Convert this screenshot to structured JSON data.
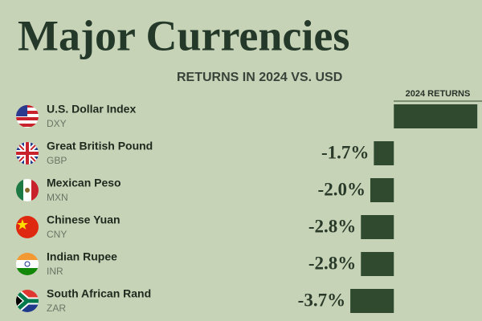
{
  "chart_data": {
    "type": "bar",
    "orientation": "horizontal",
    "title": "Major Currencies",
    "subtitle": "RETURNS IN 2024 VS. USD",
    "column_header": "2024 RETURNS",
    "categories": [
      "U.S. Dollar Index",
      "Great British Pound",
      "Mexican Peso",
      "Chinese Yuan",
      "Indian Rupee",
      "South African Rand"
    ],
    "codes": [
      "DXY",
      "GBP",
      "MXN",
      "CNY",
      "INR",
      "ZAR"
    ],
    "values": [
      7.1,
      -1.7,
      -2.0,
      -2.8,
      -2.8,
      -3.7
    ],
    "value_labels": [
      null,
      "-1.7%",
      "-2.0%",
      "-2.8%",
      "-2.8%",
      "-3.7%"
    ],
    "color": "#2f4a2f",
    "xlim": [
      -13,
      7.5
    ]
  }
}
